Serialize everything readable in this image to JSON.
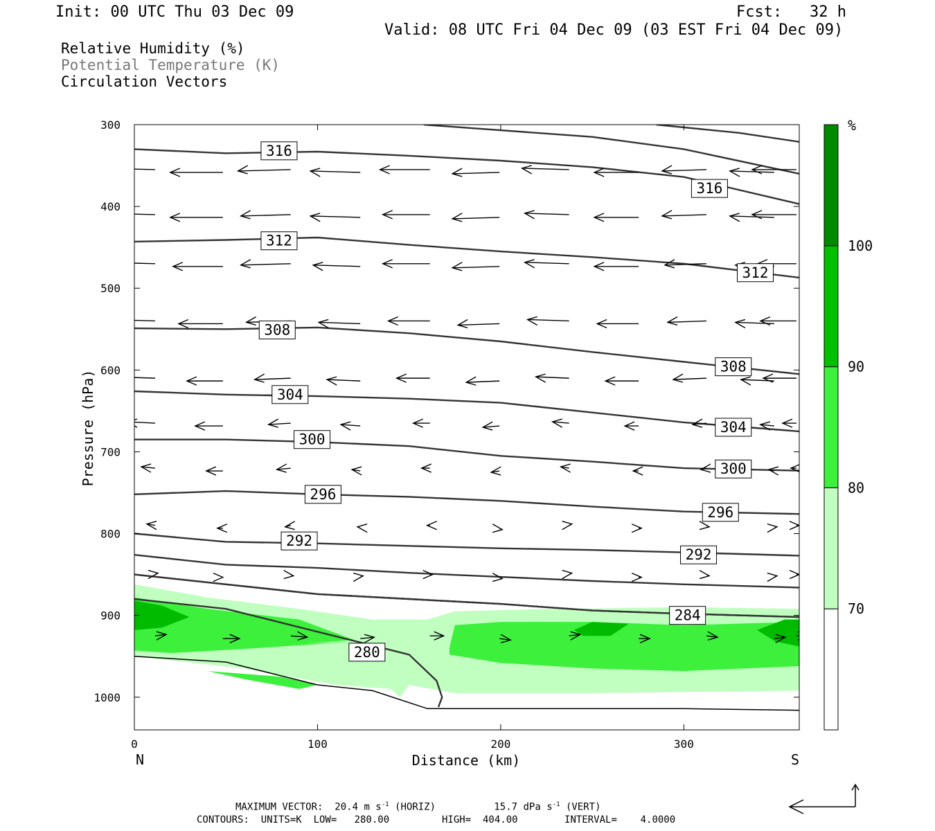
{
  "header": {
    "init": "Init: 00 UTC Thu 03 Dec 09",
    "fcst": "Fcst:   32 h",
    "valid": "Valid: 08 UTC Fri 04 Dec 09 (03 EST Fri 04 Dec 09)"
  },
  "legend": {
    "line1": "Relative Humidity (%)",
    "line2": "Potential Temperature (K)",
    "line3": "Circulation Vectors"
  },
  "footer": {
    "max_vector_label": "MAXIMUM VECTOR:",
    "max_horiz_value": "20.4",
    "max_horiz_units": "m s",
    "max_horiz_tag": "(HORIZ)",
    "max_vert_value": "15.7",
    "max_vert_units": "dPa s",
    "max_vert_tag": "(VERT)",
    "exponent": "-1",
    "contours_line": "CONTOURS:  UNITS=K  LOW=   280.00         HIGH=  404.00        INTERVAL=    4.0000"
  },
  "chart_data": {
    "type": "cross-section",
    "xlabel": "Distance (km)",
    "ylabel": "Pressure (hPa)",
    "x_end_labels": [
      "N",
      "S"
    ],
    "xlim": [
      0,
      363
    ],
    "ylim": [
      1040,
      300
    ],
    "xticks": [
      0,
      100,
      200,
      300
    ],
    "yticks": [
      300,
      400,
      500,
      600,
      700,
      800,
      900,
      1000
    ],
    "colorbar": {
      "unit": "%",
      "levels": [
        70,
        80,
        90,
        100
      ],
      "colors": [
        "#ffffff",
        "#c0ffc0",
        "#3cf03c",
        "#00c000",
        "#008a00"
      ]
    },
    "rh_fill_colors": {
      "light": "#c0ffc0",
      "mid": "#3cf03c",
      "dark": "#00bb00"
    },
    "isentropes": [
      {
        "label": "316",
        "x": [
          0,
          50,
          100,
          150,
          200,
          250,
          300,
          363
        ],
        "p": [
          330,
          335,
          333,
          338,
          344,
          352,
          364,
          397
        ],
        "labels_at": [
          [
            79,
            332
          ],
          [
            314,
            378
          ]
        ]
      },
      {
        "label": "",
        "x": [
          158,
          250,
          300,
          363
        ],
        "p": [
          300,
          315,
          330,
          360
        ],
        "labels_at": []
      },
      {
        "label": "",
        "x": [
          285,
          330,
          363
        ],
        "p": [
          300,
          310,
          321
        ],
        "labels_at": []
      },
      {
        "label": "312",
        "x": [
          0,
          50,
          100,
          150,
          200,
          250,
          300,
          363
        ],
        "p": [
          443,
          441,
          438,
          447,
          455,
          462,
          470,
          487
        ],
        "labels_at": [
          [
            79,
            442
          ],
          [
            339,
            481
          ]
        ]
      },
      {
        "label": "308",
        "x": [
          0,
          50,
          100,
          150,
          200,
          250,
          300,
          363
        ],
        "p": [
          549,
          550,
          548,
          555,
          565,
          578,
          590,
          605
        ],
        "labels_at": [
          [
            78,
            551
          ],
          [
            327,
            596
          ]
        ]
      },
      {
        "label": "304",
        "x": [
          0,
          50,
          100,
          150,
          200,
          250,
          300,
          363
        ],
        "p": [
          626,
          630,
          632,
          635,
          640,
          652,
          664,
          675
        ],
        "labels_at": [
          [
            85,
            630
          ],
          [
            327,
            670
          ]
        ]
      },
      {
        "label": "300",
        "x": [
          0,
          50,
          100,
          150,
          200,
          250,
          300,
          363
        ],
        "p": [
          685,
          685,
          688,
          693,
          705,
          712,
          720,
          723
        ],
        "labels_at": [
          [
            97,
            685
          ],
          [
            327,
            721
          ]
        ]
      },
      {
        "label": "296",
        "x": [
          0,
          50,
          100,
          150,
          200,
          250,
          300,
          363
        ],
        "p": [
          752,
          748,
          752,
          755,
          760,
          767,
          773,
          776
        ],
        "labels_at": [
          [
            103,
            752
          ],
          [
            320,
            774
          ]
        ]
      },
      {
        "label": "292",
        "x": [
          0,
          50,
          100,
          150,
          200,
          250,
          300,
          363
        ],
        "p": [
          800,
          810,
          812,
          815,
          818,
          820,
          823,
          827
        ],
        "labels_at": [
          [
            90,
            809
          ],
          [
            308,
            826
          ]
        ]
      },
      {
        "label": "",
        "x": [
          0,
          50,
          100,
          150,
          200,
          250,
          300,
          363
        ],
        "p": [
          826,
          838,
          842,
          848,
          853,
          858,
          862,
          866
        ],
        "labels_at": []
      },
      {
        "label": "",
        "x": [
          0,
          50,
          100,
          150,
          200,
          250,
          300,
          363
        ],
        "p": [
          850,
          862,
          874,
          880,
          886,
          894,
          898,
          902
        ],
        "labels_at": []
      },
      {
        "label": "284",
        "x": [
          0,
          50,
          100,
          150,
          200,
          250,
          300,
          363
        ],
        "p": [
          850,
          862,
          874,
          880,
          886,
          894,
          898,
          902
        ],
        "labels_at": [
          [
            302,
            900
          ]
        ]
      },
      {
        "label": "280",
        "x": [
          0,
          50,
          100,
          150,
          165,
          168,
          166
        ],
        "p": [
          880,
          892,
          920,
          948,
          980,
          1000,
          1012
        ],
        "labels_at": [
          [
            127,
            945
          ]
        ]
      }
    ],
    "ground": {
      "x": [
        0,
        50,
        100,
        130,
        160,
        200,
        250,
        300,
        363
      ],
      "p": [
        950,
        957,
        985,
        992,
        1014,
        1014,
        1014,
        1014,
        1016
      ]
    },
    "vectors": {
      "rows_p": [
        355,
        410,
        470,
        540,
        610,
        665,
        720,
        790,
        850,
        925
      ],
      "u_ms": [
        [
          -20,
          -19,
          -19,
          -18,
          -18,
          -17,
          -17,
          -16,
          -16,
          -16,
          -16
        ],
        [
          -20,
          -19,
          -18,
          -18,
          -17,
          -17,
          -16,
          -16,
          -16,
          -16,
          -16
        ],
        [
          -19,
          -18,
          -18,
          -17,
          -17,
          -17,
          -16,
          -16,
          -15,
          -14,
          -14
        ],
        [
          -17,
          -16,
          -16,
          -15,
          -15,
          -15,
          -15,
          -15,
          -14,
          -14,
          -13
        ],
        [
          -15,
          -13,
          -13,
          -12,
          -12,
          -12,
          -12,
          -12,
          -12,
          -12,
          -12
        ],
        [
          -10,
          -10,
          -8,
          -7,
          -6,
          -6,
          -6,
          -5,
          -5,
          -5,
          -5
        ],
        [
          -5,
          -6,
          -5,
          -3,
          -3,
          -3,
          -3,
          -2,
          -2,
          -2,
          -2
        ],
        [
          -3,
          -2,
          -2,
          -1,
          -1,
          1,
          1,
          1,
          1,
          1,
          1
        ],
        [
          1,
          0,
          1,
          1,
          1,
          1,
          1,
          1,
          1,
          1,
          1
        ],
        [
          4,
          6,
          6,
          5,
          5,
          4,
          4,
          4,
          4,
          4,
          4
        ]
      ]
    }
  }
}
